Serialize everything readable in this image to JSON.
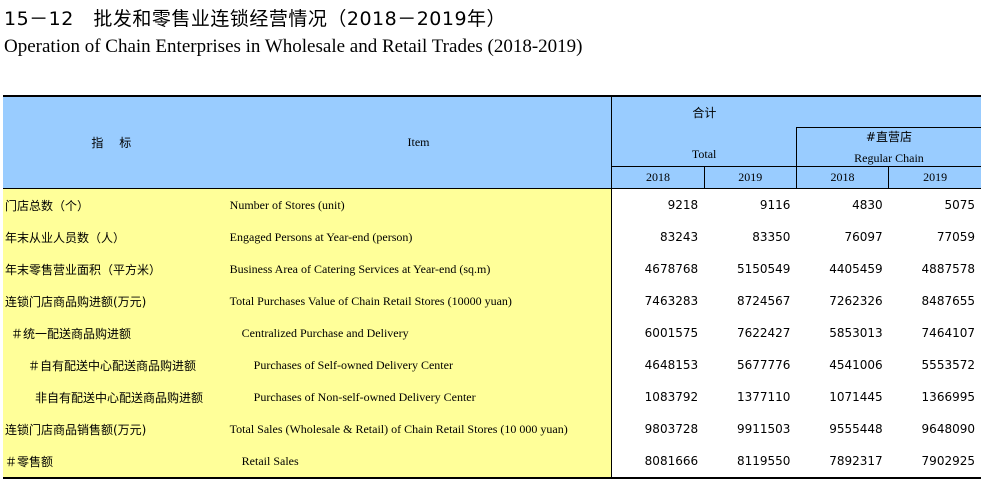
{
  "title_cn": "15－12　批发和零售业连锁经营情况（2018－2019年）",
  "title_en": "Operation of Chain Enterprises in Wholesale and Retail Trades (2018-2019)",
  "header": {
    "indicator_cn": "指 标",
    "item_en": "Item",
    "total_cn": "合计",
    "total_en": "Total",
    "regular_cn": "#直营店",
    "regular_en": "Regular Chain",
    "years": [
      "2018",
      "2019",
      "2018",
      "2019"
    ]
  },
  "rows": [
    {
      "cn": "门店总数（个）",
      "en": "Number of Stores (unit)",
      "v": [
        "9218",
        "9116",
        "4830",
        "5075"
      ]
    },
    {
      "cn": "年末从业人员数（人）",
      "en": "Engaged Persons at Year-end (person)",
      "v": [
        "83243",
        "83350",
        "76097",
        "77059"
      ]
    },
    {
      "cn": "年末零售营业面积（平方米）",
      "en": "Business Area of Catering Services at Year-end (sq.m)",
      "v": [
        "4678768",
        "5150549",
        "4405459",
        "4887578"
      ]
    },
    {
      "cn": "连锁门店商品购进额(万元)",
      "en": "Total Purchases Value of Chain Retail Stores (10000 yuan)",
      "v": [
        "7463283",
        "8724567",
        "7262326",
        "8487655"
      ]
    },
    {
      "cn": "＃统一配送商品购进额",
      "en": "Centralized Purchase and Delivery",
      "v": [
        "6001575",
        "7622427",
        "5853013",
        "7464107"
      ]
    },
    {
      "cn": "＃自有配送中心配送商品购进额",
      "en": "Purchases of Self-owned Delivery Center",
      "v": [
        "4648153",
        "5677776",
        "4541006",
        "5553572"
      ]
    },
    {
      "cn": "非自有配送中心配送商品购进额",
      "en": "Purchases of Non-self-owned Delivery Center",
      "v": [
        "1083792",
        "1377110",
        "1071445",
        "1366995"
      ]
    },
    {
      "cn": "连锁门店商品销售额(万元)",
      "en": "Total  Sales (Wholesale & Retail) of Chain Retail Stores (10 000 yuan)",
      "v": [
        "9803728",
        "9911503",
        "9555448",
        "9648090"
      ]
    },
    {
      "cn": "＃零售额",
      "en": "Retail Sales",
      "v": [
        "8081666",
        "8119550",
        "7892317",
        "7902925"
      ]
    }
  ]
}
